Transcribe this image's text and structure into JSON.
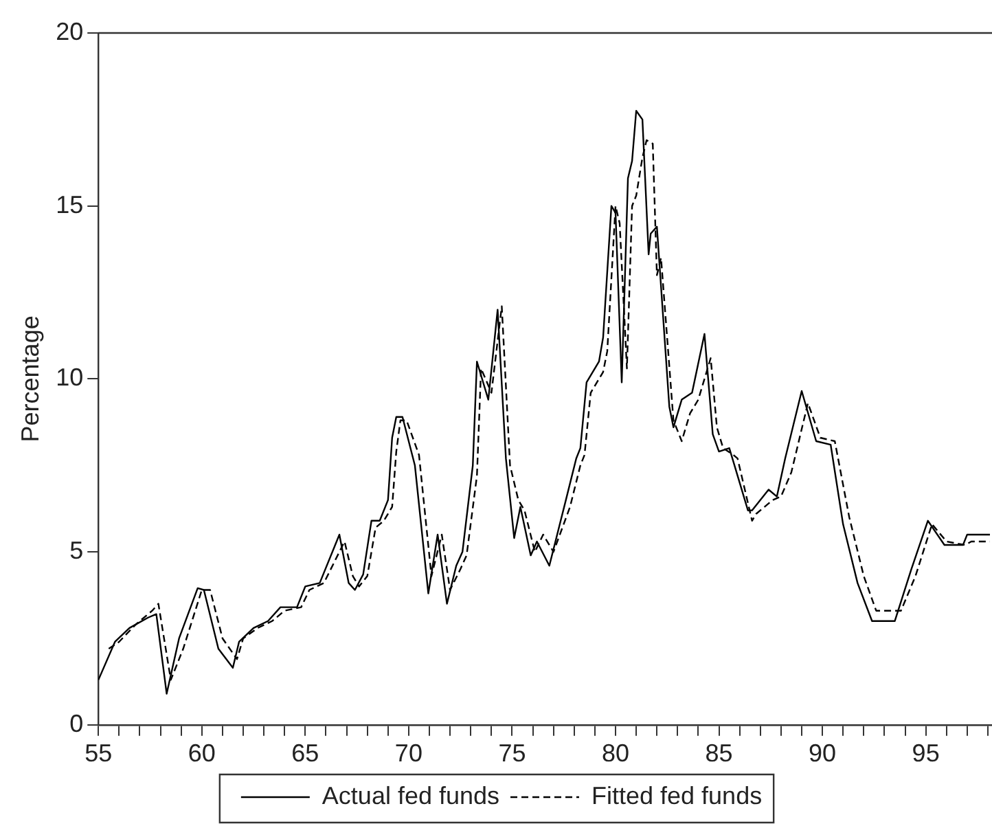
{
  "chart_data": {
    "type": "line",
    "ylabel": "Percentage",
    "xlim": [
      55,
      98.2
    ],
    "ylim": [
      0,
      20
    ],
    "yticks": [
      0,
      5,
      10,
      15,
      20
    ],
    "xticks": [
      55,
      {
        "value": 56,
        "label": null
      },
      {
        "value": 57,
        "label": null
      },
      {
        "value": 58,
        "label": null
      },
      {
        "value": 59,
        "label": null
      },
      60,
      {
        "value": 61,
        "label": null
      },
      {
        "value": 62,
        "label": null
      },
      {
        "value": 63,
        "label": null
      },
      {
        "value": 64,
        "label": null
      },
      65,
      {
        "value": 66,
        "label": null
      },
      {
        "value": 67,
        "label": null
      },
      {
        "value": 68,
        "label": null
      },
      {
        "value": 69,
        "label": null
      },
      70,
      {
        "value": 71,
        "label": null
      },
      {
        "value": 72,
        "label": null
      },
      {
        "value": 73,
        "label": null
      },
      {
        "value": 74,
        "label": null
      },
      75,
      {
        "value": 76,
        "label": null
      },
      {
        "value": 77,
        "label": null
      },
      {
        "value": 78,
        "label": null
      },
      {
        "value": 79,
        "label": null
      },
      80,
      {
        "value": 81,
        "label": null
      },
      {
        "value": 82,
        "label": null
      },
      {
        "value": 83,
        "label": null
      },
      {
        "value": 84,
        "label": null
      },
      85,
      {
        "value": 86,
        "label": null
      },
      {
        "value": 87,
        "label": null
      },
      {
        "value": 88,
        "label": null
      },
      {
        "value": 89,
        "label": null
      },
      90,
      {
        "value": 91,
        "label": null
      },
      {
        "value": 92,
        "label": null
      },
      {
        "value": 93,
        "label": null
      },
      {
        "value": 94,
        "label": null
      },
      95,
      {
        "value": 96,
        "label": null
      },
      {
        "value": 97,
        "label": null
      },
      {
        "value": 98,
        "label": null
      }
    ],
    "grid": false,
    "legend": "bottom",
    "series": [
      {
        "name": "Actual fed funds",
        "color": "#000000",
        "line_style": "solid",
        "x": [
          55.0,
          55.8,
          56.5,
          57.4,
          57.8,
          58.3,
          58.9,
          59.8,
          60.1,
          60.8,
          61.5,
          61.8,
          62.5,
          63.2,
          63.8,
          64.6,
          65.0,
          65.7,
          66.65,
          67.1,
          67.4,
          67.8,
          68.2,
          68.6,
          69.0,
          69.2,
          69.4,
          69.7,
          70.3,
          70.95,
          71.4,
          71.85,
          72.3,
          72.6,
          73.1,
          73.3,
          73.85,
          74.3,
          74.7,
          75.1,
          75.4,
          75.9,
          76.2,
          76.8,
          77.6,
          78.1,
          78.3,
          78.6,
          79.2,
          79.4,
          79.8,
          80.0,
          80.3,
          80.6,
          80.8,
          81.0,
          81.3,
          81.6,
          81.7,
          82.0,
          82.6,
          82.8,
          83.2,
          83.7,
          84.3,
          84.7,
          85.0,
          85.5,
          85.7,
          86.4,
          86.6,
          87.4,
          87.8,
          88.2,
          89.0,
          89.7,
          90.4,
          91.0,
          91.7,
          92.4,
          93.5,
          94.3,
          95.1,
          95.9,
          96.8,
          97.0,
          98.1
        ],
        "values": [
          1.3,
          2.4,
          2.8,
          3.1,
          3.2,
          0.9,
          2.5,
          3.95,
          3.9,
          2.2,
          1.65,
          2.4,
          2.8,
          3.0,
          3.4,
          3.4,
          4.0,
          4.1,
          5.5,
          4.1,
          3.9,
          4.35,
          5.9,
          5.9,
          6.5,
          8.3,
          8.9,
          8.9,
          7.5,
          3.8,
          5.5,
          3.5,
          4.6,
          5.0,
          7.5,
          10.5,
          9.4,
          12.0,
          7.7,
          5.4,
          6.3,
          4.9,
          5.3,
          4.6,
          6.5,
          7.7,
          8.0,
          9.9,
          10.5,
          11.2,
          15.0,
          14.8,
          9.9,
          15.8,
          16.3,
          17.75,
          17.5,
          13.6,
          14.2,
          14.4,
          9.2,
          8.6,
          9.4,
          9.6,
          11.3,
          8.4,
          7.9,
          8.0,
          7.6,
          6.2,
          6.2,
          6.8,
          6.6,
          7.7,
          9.65,
          8.2,
          8.1,
          5.8,
          4.1,
          3.0,
          3.0,
          4.5,
          5.9,
          5.2,
          5.2,
          5.5,
          5.5
        ]
      },
      {
        "name": "Fitted fed funds",
        "color": "#000000",
        "line_style": "dashed",
        "x": [
          55.5,
          56.0,
          56.8,
          57.6,
          57.9,
          58.5,
          59.1,
          60.0,
          60.4,
          61.0,
          61.7,
          62.0,
          62.7,
          63.4,
          64.0,
          64.8,
          65.2,
          65.9,
          66.9,
          67.3,
          67.6,
          68.0,
          68.4,
          68.8,
          69.2,
          69.4,
          69.6,
          69.9,
          70.5,
          71.1,
          71.6,
          72.0,
          72.5,
          72.8,
          73.3,
          73.5,
          74.0,
          74.5,
          74.9,
          75.3,
          75.6,
          76.1,
          76.5,
          77.0,
          77.8,
          78.3,
          78.5,
          78.8,
          79.4,
          79.6,
          80.0,
          80.2,
          80.55,
          80.8,
          81.0,
          81.3,
          81.5,
          81.8,
          82.0,
          82.2,
          82.8,
          83.2,
          83.6,
          84.0,
          84.6,
          84.9,
          85.2,
          85.7,
          85.9,
          86.6,
          86.8,
          87.6,
          88.0,
          88.5,
          89.3,
          89.9,
          90.6,
          91.3,
          92.0,
          92.6,
          93.8,
          94.5,
          95.3,
          96.0,
          96.9,
          97.2,
          98.1
        ],
        "values": [
          2.2,
          2.4,
          2.9,
          3.3,
          3.5,
          1.3,
          2.2,
          3.9,
          3.9,
          2.5,
          1.9,
          2.5,
          2.8,
          3.0,
          3.3,
          3.4,
          3.9,
          4.1,
          5.3,
          4.3,
          4.0,
          4.3,
          5.7,
          5.9,
          6.3,
          7.9,
          8.8,
          8.8,
          7.8,
          4.3,
          5.5,
          3.9,
          4.5,
          4.9,
          7.2,
          10.3,
          9.6,
          12.1,
          7.5,
          6.5,
          6.2,
          5.0,
          5.5,
          5.0,
          6.3,
          7.5,
          7.8,
          9.6,
          10.2,
          10.8,
          15.0,
          14.5,
          10.3,
          15.0,
          15.3,
          16.4,
          16.9,
          16.8,
          13.0,
          13.5,
          8.8,
          8.2,
          9.0,
          9.4,
          10.6,
          8.6,
          8.0,
          7.8,
          7.7,
          5.9,
          6.1,
          6.5,
          6.6,
          7.3,
          9.3,
          8.3,
          8.2,
          6.0,
          4.3,
          3.3,
          3.3,
          4.3,
          5.8,
          5.3,
          5.2,
          5.3,
          5.3
        ]
      }
    ]
  }
}
